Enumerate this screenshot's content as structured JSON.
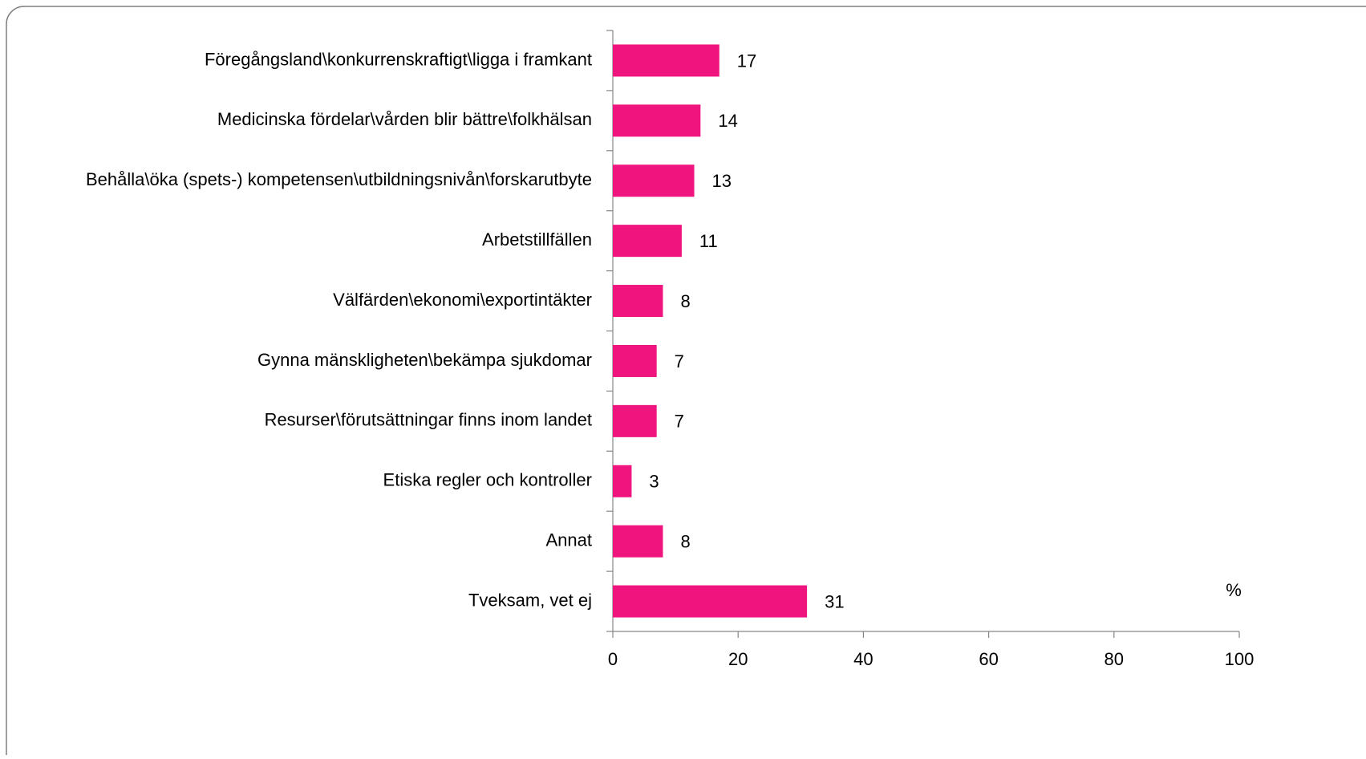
{
  "chart_data": {
    "type": "bar",
    "orientation": "horizontal",
    "categories": [
      "Föregångsland\\konkurrenskraftigt\\ligga i framkant",
      "Medicinska fördelar\\vården blir bättre\\folkhälsan",
      "Behålla\\öka (spets-) kompetensen\\utbildningsnivån\\forskarutbyte",
      "Arbetstillfällen",
      "Välfärden\\ekonomi\\exportintäkter",
      "Gynna mänskligheten\\bekämpa sjukdomar",
      "Resurser\\förutsättningar finns inom landet",
      "Etiska regler och kontroller",
      "Annat",
      "Tveksam, vet ej"
    ],
    "values": [
      17,
      14,
      13,
      11,
      8,
      7,
      7,
      3,
      8,
      31
    ],
    "color": "#f0147e",
    "xlabel": "%",
    "xlim": [
      0,
      100
    ],
    "xticks": [
      0,
      20,
      40,
      60,
      80,
      100
    ],
    "grid": false
  }
}
